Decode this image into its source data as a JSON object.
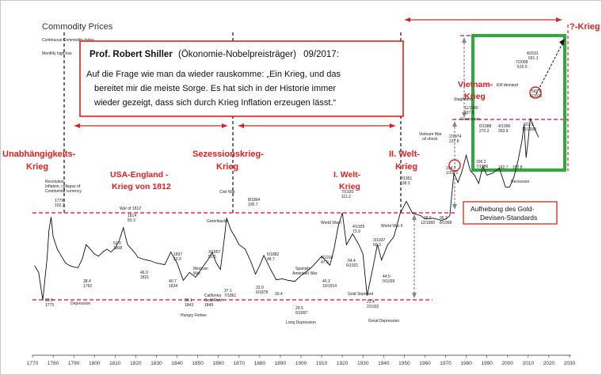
{
  "header": {
    "title": "Commodity Prices",
    "subtitle_1": "Continuous Commodity Index",
    "subtitle_2": "Monthly high-low"
  },
  "quote": {
    "author": "Prof. Robert Shiller",
    "role": "(Ökonomie-Nobelpreisträger)",
    "date": "09/2017:",
    "line1": "Auf die Frage wie man da wieder rauskomme: „Ein Krieg, und das",
    "line2": "bereitet mir die meiste Sorge. Es hat sich in der Historie immer",
    "line3": "wieder gezeigt, dass sich durch Krieg Inflation erzeugen lässt.“"
  },
  "war_labels": {
    "unabh_1": "Unabhängigkeits-",
    "unabh_2": "Krieg",
    "usa_1": "USA-England -",
    "usa_2": "Krieg von 1812",
    "sezession_1": "Sezessionskrieg-",
    "sezession_2": "Krieg",
    "ww1_1": "I. Welt-",
    "ww1_2": "Krieg",
    "ww2_1": "II. Welt-",
    "ww2_2": "Krieg",
    "vietnam_1": "Vietnam-",
    "vietnam_2": "Krieg",
    "future": "?-Krieg"
  },
  "callout": {
    "line1": "Aufhebung des Gold-",
    "line2": "Devisen-Standards"
  },
  "annotations": {
    "revolution_1": "Revolution",
    "revolution_2": "Inflation, collapse of",
    "revolution_3": "Continental currency",
    "p1779": "1779",
    "p1779v": "102.3",
    "p1775": "20.5",
    "p1775d": "1775",
    "p1792": "38.4",
    "p1792d": "1792",
    "depression": "Depression",
    "war1812": "War of 1812",
    "p1814": "1814",
    "p1814v": "83.3",
    "p1808": "52.0",
    "p1808d": "1808",
    "p1821": "46.9",
    "p1821d": "1821",
    "p1834": "40.7",
    "p1834d": "1834",
    "p1837": "1837",
    "p1837v": "52.0",
    "p1843": "30.1",
    "p1843d": "1843",
    "hungry": "Hungry Forties",
    "mexican_1": "Mexican",
    "mexican_2": "War",
    "p1857": "3/1857",
    "p1857v": "51.5",
    "california_1": "California",
    "california_2": "Gold Rush",
    "p1849d": "1849",
    "p1861": "37.1",
    "p1861d": "7/1861",
    "civilwar": "Civil War",
    "greenbacks": "Greenbacks",
    "p1864": "8/1864",
    "p1864v": "100.7",
    "p1882": "6/1882",
    "p1882v": "48.7",
    "p1878": "33.9",
    "p1878d": "6/1878",
    "p1888": "30.4",
    "p1897": "29.5",
    "p1897d": "6/1897",
    "longdep": "Long Depression",
    "spanish_1": "Spanish-",
    "spanish_2": "American War",
    "p1910": "4/1910",
    "p1910v": "47.9",
    "p1914": "40.3",
    "p1914d": "10/1914",
    "ww1": "World War I",
    "p1920": "7/1920",
    "p1920v": "111.2",
    "p1925": "4/1925",
    "p1925v": "73.9",
    "p1926": "54.4",
    "p1926d": "6/1921",
    "goldstd": "Gold Standard",
    "p1932": "22.4",
    "p1932d": "2/1932",
    "greatdep": "Great Depression",
    "p1937": "3/1937",
    "p1937v": "60.3",
    "ww2": "World War II",
    "p1939": "44.5",
    "p1939d": "9/1939",
    "p1951": "2/1951",
    "p1951v": "138.3",
    "p1960": "98.5",
    "p1960d": "12/1960",
    "p1968": "96.2",
    "p1968d": "8/1968",
    "vietnam_war_1": "Vietnam War",
    "vietnam_war_2": "oil shock",
    "stagflation": "Stagflation",
    "p1980": "11/1980",
    "p1980v": "337.6",
    "p1974": "2/1974",
    "p1974v": "237.8",
    "p1972": "104.7",
    "p1972d": "1/1972",
    "greenspan": "Greenspan",
    "p1988": "6/1988",
    "p1988v": "272.2",
    "p1986": "196.2",
    "p1986d": "7/1986",
    "p1996": "4/1996",
    "p1996v": "263.9",
    "p1999": "182.7",
    "p2001": "182.8",
    "p2008": "7/2008",
    "p2008v": "615.0",
    "p2008b": "322.5",
    "p2008bd": "12/2008",
    "em_demand": "EM demand",
    "p2011": "4/2011",
    "p2011v": "691.1",
    "p2013": "569.0",
    "p2013d": "6/2013",
    "recession": "Recession"
  },
  "colors": {
    "red": "#e41e1e",
    "green": "#2eaa3c",
    "line": "#111111"
  },
  "chart_data": {
    "type": "line",
    "title": "Commodity Prices",
    "x_ticks": [
      "1770",
      "1780",
      "1790",
      "1800",
      "1810",
      "1820",
      "1830",
      "1840",
      "1850",
      "1860",
      "1870",
      "1880",
      "1890",
      "1900",
      "1910",
      "1920",
      "1930",
      "1940",
      "1950",
      "1960",
      "1970",
      "1980",
      "1990",
      "2000",
      "2010",
      "2020",
      "2030"
    ],
    "xlim": [
      1770,
      2030
    ],
    "y_scale": "log",
    "series": [
      {
        "x": [
          1771,
          1773,
          1775,
          1777,
          1778,
          1779,
          1780,
          1782,
          1784,
          1786,
          1788,
          1790,
          1792,
          1794,
          1796,
          1798,
          1800,
          1802,
          1804,
          1806,
          1808,
          1810,
          1812,
          1814,
          1816,
          1818,
          1820,
          1821,
          1824,
          1827,
          1830,
          1834,
          1837,
          1840,
          1843,
          1846,
          1849,
          1852,
          1855,
          1857,
          1859,
          1861,
          1863,
          1864,
          1866,
          1868,
          1870,
          1873,
          1876,
          1878,
          1880,
          1882,
          1885,
          1888,
          1891,
          1894,
          1897,
          1900,
          1903,
          1906,
          1910,
          1914,
          1916,
          1918,
          1920,
          1922,
          1925,
          1928,
          1930,
          1932,
          1935,
          1937,
          1939,
          1942,
          1945,
          1948,
          1951,
          1954,
          1958,
          1960,
          1964,
          1968,
          1970,
          1972,
          1974,
          1976,
          1978,
          1980,
          1982,
          1984,
          1986,
          1988,
          1990,
          1993,
          1996,
          1999,
          2001,
          2003,
          2005,
          2007,
          2008,
          2009,
          2010,
          2011,
          2012,
          2013,
          2015
        ],
        "y": [
          40,
          35,
          20.5,
          45,
          80,
          102.3,
          70,
          55,
          48,
          42,
          40,
          39,
          38.4,
          45,
          60,
          55,
          50,
          48,
          52,
          55,
          52,
          56,
          65,
          83.3,
          60,
          55,
          50,
          46.9,
          45,
          44,
          42,
          40.7,
          52,
          42,
          30.1,
          35,
          32,
          38,
          45,
          51.5,
          42,
          37.1,
          70,
          100.7,
          80,
          70,
          60,
          55,
          42,
          33.9,
          40,
          48.7,
          38,
          30.4,
          31,
          30,
          29.5,
          33,
          36,
          40,
          47.9,
          40.3,
          55,
          85,
          111.2,
          60,
          73.9,
          60,
          50,
          22.4,
          40,
          60.3,
          44.5,
          60,
          70,
          110,
          138.3,
          110,
          105,
          98.5,
          100,
          96.2,
          98,
          104.7,
          237.8,
          200,
          250,
          337.6,
          250,
          230,
          196.2,
          272.2,
          230,
          240,
          263.9,
          182.7,
          182.8,
          220,
          300,
          450,
          615.0,
          322.5,
          450,
          691.1,
          620,
          569.0,
          480
        ]
      }
    ]
  }
}
